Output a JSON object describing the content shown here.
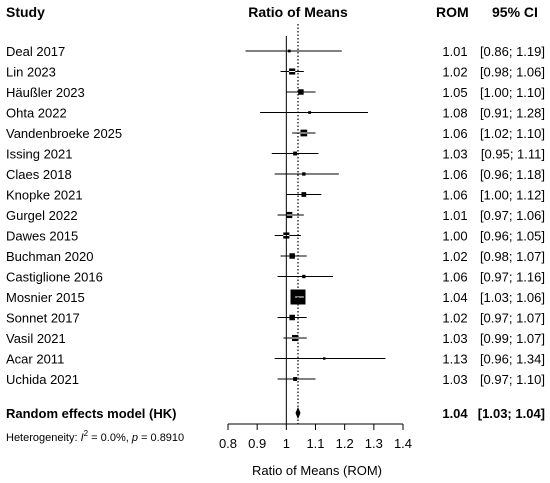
{
  "chart_data": {
    "type": "forest",
    "header": {
      "study": "Study",
      "effect": "Ratio of Means",
      "estimate": "ROM",
      "ci": "95% CI"
    },
    "studies": [
      {
        "name": "Deal 2017",
        "rom": 1.01,
        "lower": 0.86,
        "upper": 1.19,
        "rom_text": "1.01",
        "ci_text": "[0.86; 1.19]",
        "weight": 1
      },
      {
        "name": "Lin 2023",
        "rom": 1.02,
        "lower": 0.98,
        "upper": 1.06,
        "rom_text": "1.02",
        "ci_text": "[0.98; 1.06]",
        "weight": 5
      },
      {
        "name": "Häußler 2023",
        "rom": 1.05,
        "lower": 1.0,
        "upper": 1.1,
        "rom_text": "1.05",
        "ci_text": "[1.00; 1.10]",
        "weight": 4
      },
      {
        "name": "Ohta 2022",
        "rom": 1.08,
        "lower": 0.91,
        "upper": 1.28,
        "rom_text": "1.08",
        "ci_text": "[0.91; 1.28]",
        "weight": 1
      },
      {
        "name": "Vandenbroeke 2025",
        "rom": 1.06,
        "lower": 1.02,
        "upper": 1.1,
        "rom_text": "1.06",
        "ci_text": "[1.02; 1.10]",
        "weight": 6
      },
      {
        "name": "Issing 2021",
        "rom": 1.03,
        "lower": 0.95,
        "upper": 1.11,
        "rom_text": "1.03",
        "ci_text": "[0.95; 1.11]",
        "weight": 2
      },
      {
        "name": "Claes 2018",
        "rom": 1.06,
        "lower": 0.96,
        "upper": 1.18,
        "rom_text": "1.06",
        "ci_text": "[0.96; 1.18]",
        "weight": 1.5
      },
      {
        "name": "Knopke 2021",
        "rom": 1.06,
        "lower": 1.0,
        "upper": 1.12,
        "rom_text": "1.06",
        "ci_text": "[1.00; 1.12]",
        "weight": 3
      },
      {
        "name": "Gurgel 2022",
        "rom": 1.01,
        "lower": 0.97,
        "upper": 1.06,
        "rom_text": "1.01",
        "ci_text": "[0.97; 1.06]",
        "weight": 5
      },
      {
        "name": "Dawes 2015",
        "rom": 1.0,
        "lower": 0.96,
        "upper": 1.05,
        "rom_text": "1.00",
        "ci_text": "[0.96; 1.05]",
        "weight": 5
      },
      {
        "name": "Buchman 2020",
        "rom": 1.02,
        "lower": 0.98,
        "upper": 1.07,
        "rom_text": "1.02",
        "ci_text": "[0.98; 1.07]",
        "weight": 4
      },
      {
        "name": "Castiglione 2016",
        "rom": 1.06,
        "lower": 0.97,
        "upper": 1.16,
        "rom_text": "1.06",
        "ci_text": "[0.97; 1.16]",
        "weight": 1.5
      },
      {
        "name": "Mosnier 2015",
        "rom": 1.04,
        "lower": 1.03,
        "upper": 1.06,
        "rom_text": "1.04",
        "ci_text": "[1.03; 1.06]",
        "weight": 30
      },
      {
        "name": "Sonnet 2017",
        "rom": 1.02,
        "lower": 0.97,
        "upper": 1.07,
        "rom_text": "1.02",
        "ci_text": "[0.97; 1.07]",
        "weight": 4
      },
      {
        "name": "Vasil 2021",
        "rom": 1.03,
        "lower": 0.99,
        "upper": 1.07,
        "rom_text": "1.03",
        "ci_text": "[0.99; 1.07]",
        "weight": 5
      },
      {
        "name": "Acar 2011",
        "rom": 1.13,
        "lower": 0.96,
        "upper": 1.34,
        "rom_text": "1.13",
        "ci_text": "[0.96; 1.34]",
        "weight": 0.8
      },
      {
        "name": "Uchida 2021",
        "rom": 1.03,
        "lower": 0.97,
        "upper": 1.1,
        "rom_text": "1.03",
        "ci_text": "[0.97; 1.10]",
        "weight": 2
      }
    ],
    "summary": {
      "name": "Random effects model (HK)",
      "rom": 1.04,
      "lower": 1.03,
      "upper": 1.04,
      "rom_text": "1.04",
      "ci_text": "[1.03; 1.04]"
    },
    "heterogeneity": {
      "prefix": "Heterogeneity: ",
      "i2_symbol": "I",
      "i2_sup": "2",
      "rest": " = 0.0%, ",
      "p_symbol": "p",
      "p_rest": " = 0.8910"
    },
    "xaxis": {
      "label": "Ratio of Means (ROM)",
      "ticks": [
        0.8,
        0.9,
        1,
        1.1,
        1.2,
        1.3,
        1.4
      ],
      "tick_labels": [
        "0.8",
        "0.9",
        "1",
        "1.1",
        "1.2",
        "1.3",
        "1.4"
      ],
      "range": [
        0.8,
        1.4
      ],
      "reference_line": 1
    },
    "colors": {
      "ink": "#000000",
      "dotted_line": "#000000"
    }
  }
}
